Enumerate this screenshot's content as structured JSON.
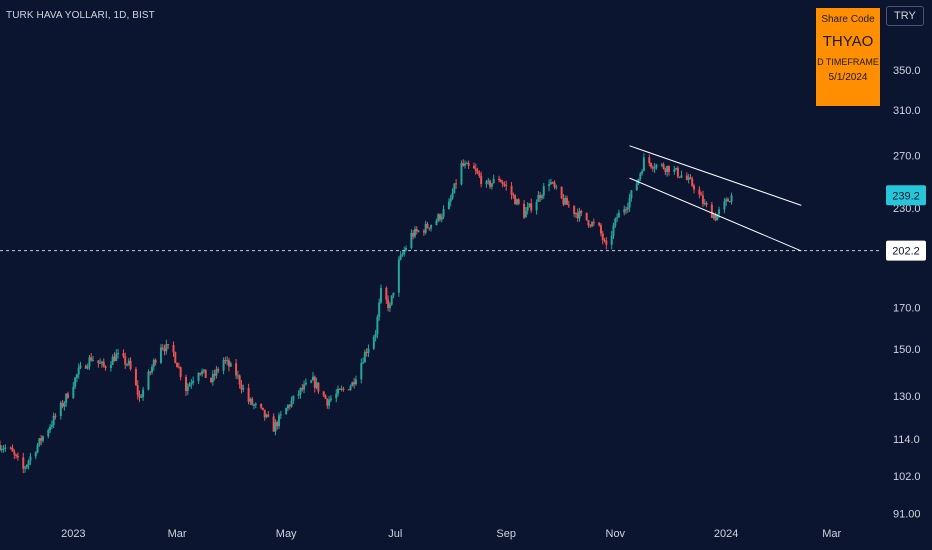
{
  "header": {
    "symbol_title": "TURK HAVA YOLLARI, 1D, BIST"
  },
  "share_box": {
    "label": "Share Code",
    "code": "THYAO",
    "timeframe": "D TIMEFRAME",
    "date": "5/1/2024"
  },
  "currency_button": "TRY",
  "colors": {
    "background": "#0c1530",
    "up": "#26a69a",
    "down": "#ef5350",
    "axis_text": "#d1d4dc",
    "channel": "#ffffff",
    "last_price_bg": "#26c6da",
    "share_box_bg": "#ff8f00"
  },
  "chart_data": {
    "type": "candlestick",
    "title": "",
    "xlabel": "",
    "ylabel": "",
    "y_scale": "log",
    "ylim": [
      90,
      420
    ],
    "x_range": [
      "2022-11-22",
      "2024-03-28"
    ],
    "y_ticks": [
      "91.00",
      "102.0",
      "114.0",
      "130.0",
      "150.0",
      "170.0",
      "230.0",
      "270.0",
      "310.0",
      "350.0"
    ],
    "x_ticks": [
      {
        "label": "2023",
        "date": "2023-01-02"
      },
      {
        "label": "Mar",
        "date": "2023-03-01"
      },
      {
        "label": "May",
        "date": "2023-05-01"
      },
      {
        "label": "Jul",
        "date": "2023-07-01"
      },
      {
        "label": "Sep",
        "date": "2023-09-01"
      },
      {
        "label": "Nov",
        "date": "2023-11-01"
      },
      {
        "label": "2024",
        "date": "2024-01-02"
      },
      {
        "label": "Mar",
        "date": "2024-03-01"
      }
    ],
    "price_line": {
      "value": 202.2,
      "label": "202.2"
    },
    "last_price": {
      "value": 239.2,
      "label": "239.2"
    },
    "channel": [
      {
        "start": [
          "2023-11-09",
          278
        ],
        "end": [
          "2024-02-13",
          232
        ]
      },
      {
        "start": [
          "2023-11-09",
          252
        ],
        "end": [
          "2024-02-13",
          202
        ]
      }
    ],
    "closes": [
      {
        "date": "2022-11-22",
        "close": 112
      },
      {
        "date": "2022-11-28",
        "close": 110
      },
      {
        "date": "2022-12-05",
        "close": 104
      },
      {
        "date": "2022-12-09",
        "close": 108
      },
      {
        "date": "2022-12-15",
        "close": 114
      },
      {
        "date": "2022-12-21",
        "close": 120
      },
      {
        "date": "2022-12-28",
        "close": 128
      },
      {
        "date": "2023-01-05",
        "close": 140
      },
      {
        "date": "2023-01-12",
        "close": 146
      },
      {
        "date": "2023-01-19",
        "close": 142
      },
      {
        "date": "2023-01-26",
        "close": 147
      },
      {
        "date": "2023-02-02",
        "close": 143
      },
      {
        "date": "2023-02-08",
        "close": 129
      },
      {
        "date": "2023-02-14",
        "close": 140
      },
      {
        "date": "2023-02-20",
        "close": 152
      },
      {
        "date": "2023-02-27",
        "close": 148
      },
      {
        "date": "2023-03-06",
        "close": 133
      },
      {
        "date": "2023-03-13",
        "close": 141
      },
      {
        "date": "2023-03-20",
        "close": 136
      },
      {
        "date": "2023-03-27",
        "close": 145
      },
      {
        "date": "2023-04-03",
        "close": 139
      },
      {
        "date": "2023-04-10",
        "close": 128
      },
      {
        "date": "2023-04-17",
        "close": 124
      },
      {
        "date": "2023-04-24",
        "close": 118
      },
      {
        "date": "2023-05-02",
        "close": 126
      },
      {
        "date": "2023-05-09",
        "close": 132
      },
      {
        "date": "2023-05-16",
        "close": 136
      },
      {
        "date": "2023-05-24",
        "close": 128
      },
      {
        "date": "2023-06-01",
        "close": 132
      },
      {
        "date": "2023-06-07",
        "close": 135
      },
      {
        "date": "2023-06-14",
        "close": 148
      },
      {
        "date": "2023-06-20",
        "close": 158
      },
      {
        "date": "2023-06-23",
        "close": 178
      },
      {
        "date": "2023-06-28",
        "close": 170
      },
      {
        "date": "2023-07-03",
        "close": 195
      },
      {
        "date": "2023-07-10",
        "close": 212
      },
      {
        "date": "2023-07-17",
        "close": 216
      },
      {
        "date": "2023-07-24",
        "close": 222
      },
      {
        "date": "2023-07-31",
        "close": 232
      },
      {
        "date": "2023-08-07",
        "close": 262
      },
      {
        "date": "2023-08-14",
        "close": 258
      },
      {
        "date": "2023-08-21",
        "close": 246
      },
      {
        "date": "2023-08-28",
        "close": 252
      },
      {
        "date": "2023-09-04",
        "close": 240
      },
      {
        "date": "2023-09-11",
        "close": 226
      },
      {
        "date": "2023-09-18",
        "close": 236
      },
      {
        "date": "2023-09-25",
        "close": 250
      },
      {
        "date": "2023-10-02",
        "close": 236
      },
      {
        "date": "2023-10-09",
        "close": 228
      },
      {
        "date": "2023-10-16",
        "close": 222
      },
      {
        "date": "2023-10-23",
        "close": 216
      },
      {
        "date": "2023-10-27",
        "close": 203
      },
      {
        "date": "2023-11-02",
        "close": 224
      },
      {
        "date": "2023-11-08",
        "close": 234
      },
      {
        "date": "2023-11-14",
        "close": 252
      },
      {
        "date": "2023-11-17",
        "close": 266
      },
      {
        "date": "2023-11-24",
        "close": 262
      },
      {
        "date": "2023-12-01",
        "close": 260
      },
      {
        "date": "2023-12-08",
        "close": 254
      },
      {
        "date": "2023-12-15",
        "close": 246
      },
      {
        "date": "2023-12-21",
        "close": 232
      },
      {
        "date": "2023-12-27",
        "close": 224
      },
      {
        "date": "2024-01-02",
        "close": 234
      },
      {
        "date": "2024-01-05",
        "close": 239.2
      }
    ]
  }
}
